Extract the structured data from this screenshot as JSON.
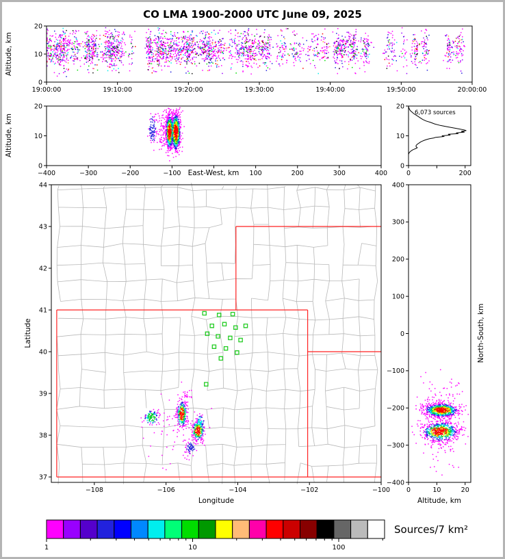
{
  "title": "CO LMA 1900-2000 UTC June 09, 2025",
  "colorbar": {
    "label": "Sources/7 km²",
    "tick_labels": [
      "1",
      "10",
      "100"
    ],
    "tick_values": [
      1,
      10,
      100
    ],
    "log_max": 206,
    "colors": [
      "#ff00ff",
      "#9900ff",
      "#5500cc",
      "#2222dd",
      "#0000ff",
      "#0088ff",
      "#00eeee",
      "#00ff77",
      "#00dd00",
      "#009900",
      "#ffff00",
      "#ffbb77",
      "#ff00aa",
      "#ff0000",
      "#cc0000",
      "#880000",
      "#000000",
      "#666666",
      "#bbbbbb",
      "#ffffff"
    ]
  },
  "density_ramp": [
    "#ff00ff",
    "#2222dd",
    "#00e5ee",
    "#00cc22",
    "#ffee00",
    "#ff0000"
  ],
  "chart_data": [
    {
      "id": "time_height",
      "type": "scatter",
      "ylabel": "Altitude, km",
      "xlabel": "",
      "xlim": [
        0,
        3600
      ],
      "ylim": [
        0,
        20
      ],
      "xtick_values": [
        0,
        600,
        1200,
        1800,
        2400,
        3000,
        3600
      ],
      "xtick_labels": [
        "19:00:00",
        "19:10:00",
        "19:20:00",
        "19:30:00",
        "19:40:00",
        "19:50:00",
        "20:00:00"
      ],
      "ytick_values": [
        0,
        10,
        20
      ],
      "alt_mean": 12,
      "alt_sd": 3.0,
      "bands": [
        {
          "t": [
            0,
            1980
          ],
          "n": 2100,
          "bursts": 80
        },
        {
          "t": [
            1980,
            2520
          ],
          "n": 300,
          "bursts": 16
        },
        {
          "t": [
            2520,
            3060
          ],
          "n": 280,
          "bursts": 11
        },
        {
          "t": [
            3060,
            3580
          ],
          "n": 230,
          "bursts": 8
        }
      ],
      "color_weights": [
        [
          "#ff00ff",
          56
        ],
        [
          "#9900ff",
          12
        ],
        [
          "#2222dd",
          11
        ],
        [
          "#00eeee",
          6
        ],
        [
          "#00dd00",
          5
        ],
        [
          "#ff0000",
          3
        ],
        [
          "#ff9933",
          3
        ],
        [
          "#111111",
          4
        ]
      ],
      "seed": 42
    },
    {
      "id": "ew_height",
      "type": "scatter",
      "ylabel": "Altitude, km",
      "xlabel": "East-West, km",
      "xlim": [
        -400,
        400
      ],
      "ylim": [
        0,
        20
      ],
      "xtick_values": [
        -400,
        -300,
        -200,
        -100,
        0,
        100,
        200,
        300,
        400
      ],
      "xtick_labels": [
        "−400",
        "−300",
        "−200",
        "−100",
        "",
        "100",
        "200",
        "300",
        "400"
      ],
      "ytick_values": [
        0,
        10,
        20
      ],
      "clusters": [
        {
          "cx": -110,
          "cy": 12.0,
          "sx": 16.0,
          "sy": 3.4,
          "n": 220,
          "cap": 0
        },
        {
          "cx": -148,
          "cy": 12.5,
          "sx": 4.5,
          "sy": 2.4,
          "n": 80,
          "cap": 1
        },
        {
          "cx": -107,
          "cy": 11.6,
          "sx": 4.5,
          "sy": 3.0,
          "n": 520,
          "cap": 5
        },
        {
          "cx": -92,
          "cy": 11.4,
          "sx": 5.5,
          "sy": 3.2,
          "n": 700,
          "cap": 5
        }
      ],
      "seed": 7
    },
    {
      "id": "alt_histogram",
      "type": "line",
      "label": "6,073 sources",
      "xlabel": "",
      "ylabel": "",
      "xlim": [
        0,
        220
      ],
      "ylim": [
        0,
        20
      ],
      "xtick_values": [
        0,
        100,
        200
      ],
      "xtick_labels": [
        "0",
        "",
        "200"
      ],
      "ytick_values": [
        0,
        10,
        20
      ],
      "profile": [
        [
          20,
          0
        ],
        [
          19.5,
          1
        ],
        [
          19,
          3
        ],
        [
          18.5,
          6
        ],
        [
          18,
          12
        ],
        [
          17.5,
          18
        ],
        [
          17,
          26
        ],
        [
          16.5,
          34
        ],
        [
          16,
          42
        ],
        [
          15.5,
          50
        ],
        [
          15,
          62
        ],
        [
          14.5,
          78
        ],
        [
          14,
          92
        ],
        [
          13.5,
          112
        ],
        [
          13,
          138
        ],
        [
          12.5,
          168
        ],
        [
          12.25,
          182
        ],
        [
          12,
          196
        ],
        [
          11.75,
          204
        ],
        [
          11.5,
          186
        ],
        [
          11.25,
          198
        ],
        [
          11,
          168
        ],
        [
          10.75,
          176
        ],
        [
          10.5,
          140
        ],
        [
          10.25,
          148
        ],
        [
          10,
          118
        ],
        [
          9.75,
          124
        ],
        [
          9.5,
          96
        ],
        [
          9.25,
          88
        ],
        [
          9,
          74
        ],
        [
          8.75,
          64
        ],
        [
          8.5,
          56
        ],
        [
          8.25,
          50
        ],
        [
          8,
          44
        ],
        [
          7.75,
          40
        ],
        [
          7.5,
          36
        ],
        [
          7.25,
          32
        ],
        [
          7,
          29
        ],
        [
          6.75,
          27
        ],
        [
          6.5,
          26
        ],
        [
          6.25,
          28
        ],
        [
          6,
          31
        ],
        [
          5.75,
          26
        ],
        [
          5.5,
          20
        ],
        [
          5.25,
          14
        ],
        [
          5,
          10
        ],
        [
          4.75,
          7
        ],
        [
          4.5,
          4
        ],
        [
          4.25,
          2
        ],
        [
          4,
          1
        ],
        [
          3.75,
          0
        ],
        [
          3.2,
          0
        ]
      ]
    },
    {
      "id": "map",
      "type": "scatter",
      "xlabel": "Longitude",
      "ylabel": "Latitude",
      "xlim": [
        -109.2,
        -100
      ],
      "ylim": [
        36.87,
        44
      ],
      "xtick_values": [
        -108,
        -106,
        -104,
        -102,
        -100
      ],
      "xtick_labels": [
        "−108",
        "−106",
        "−104",
        "−102",
        "−100"
      ],
      "ytick_values": [
        37,
        38,
        39,
        40,
        41,
        42,
        43,
        44
      ],
      "ytick_labels": [
        "37",
        "38",
        "39",
        "40",
        "41",
        "42",
        "43",
        "44"
      ],
      "state_border_color": "#ff2222",
      "county_color": "#b8b8b8",
      "station_color": "#22cc22",
      "state_borders": [
        [
          -109.05,
          37,
          -100,
          37
        ],
        [
          -109.05,
          37,
          -109.05,
          41
        ],
        [
          -109.05,
          41,
          -102.05,
          41
        ],
        [
          -102.05,
          37,
          -102.05,
          41
        ],
        [
          -104.05,
          41,
          -104.05,
          43
        ],
        [
          -104.05,
          43,
          -100,
          43
        ],
        [
          -102.05,
          40,
          -100,
          40
        ]
      ],
      "stations": [
        [
          -104.93,
          40.92
        ],
        [
          -104.52,
          40.88
        ],
        [
          -104.14,
          40.9
        ],
        [
          -104.72,
          40.62
        ],
        [
          -104.37,
          40.66
        ],
        [
          -104.06,
          40.58
        ],
        [
          -103.78,
          40.62
        ],
        [
          -104.85,
          40.43
        ],
        [
          -104.55,
          40.37
        ],
        [
          -104.21,
          40.33
        ],
        [
          -103.92,
          40.28
        ],
        [
          -104.66,
          40.12
        ],
        [
          -104.33,
          40.08
        ],
        [
          -104.02,
          39.98
        ],
        [
          -104.47,
          39.84
        ],
        [
          -104.88,
          39.22
        ]
      ],
      "clusters": [
        {
          "cx": -106.42,
          "cy": 38.44,
          "sx": 0.1,
          "sy": 0.09,
          "n": 110,
          "cap": 3
        },
        {
          "cx": -105.57,
          "cy": 38.52,
          "sx": 0.07,
          "sy": 0.16,
          "n": 280,
          "cap": 5
        },
        {
          "cx": -105.12,
          "cy": 38.12,
          "sx": 0.09,
          "sy": 0.12,
          "n": 240,
          "cap": 5
        },
        {
          "cx": -105.05,
          "cy": 38.34,
          "sx": 0.05,
          "sy": 0.07,
          "n": 45,
          "cap": 2
        },
        {
          "cx": -105.33,
          "cy": 37.72,
          "sx": 0.07,
          "sy": 0.08,
          "n": 55,
          "cap": 1
        },
        {
          "cx": -105.45,
          "cy": 39.0,
          "sx": 0.05,
          "sy": 0.16,
          "n": 20,
          "cap": 0
        },
        {
          "cx": -105.6,
          "cy": 38.1,
          "sx": 0.45,
          "sy": 0.45,
          "n": 80,
          "cap": 0
        }
      ],
      "seed": 13
    },
    {
      "id": "ns_height",
      "type": "scatter",
      "xlabel": "Altitude, km",
      "ylabel": "North-South, km",
      "xlim": [
        0,
        22
      ],
      "ylim": [
        -400,
        400
      ],
      "xtick_values": [
        0,
        10,
        20
      ],
      "xtick_labels": [
        "0",
        "10",
        "20"
      ],
      "ytick_values": [
        400,
        300,
        200,
        100,
        0,
        -100,
        -200,
        -300,
        -400
      ],
      "ytick_labels": [
        "400",
        "300",
        "200",
        "100",
        "0",
        "−100",
        "−200",
        "−300",
        "−400"
      ],
      "clusters": [
        {
          "cx": 11.0,
          "cy": -230,
          "sx": 4.2,
          "sy": 55,
          "n": 240,
          "cap": 0
        },
        {
          "cx": 11.5,
          "cy": -205,
          "sx": 3.0,
          "sy": 9,
          "n": 760,
          "cap": 5
        },
        {
          "cx": 11.0,
          "cy": -262,
          "sx": 3.2,
          "sy": 13,
          "n": 620,
          "cap": 5
        }
      ],
      "seed": 99
    }
  ]
}
